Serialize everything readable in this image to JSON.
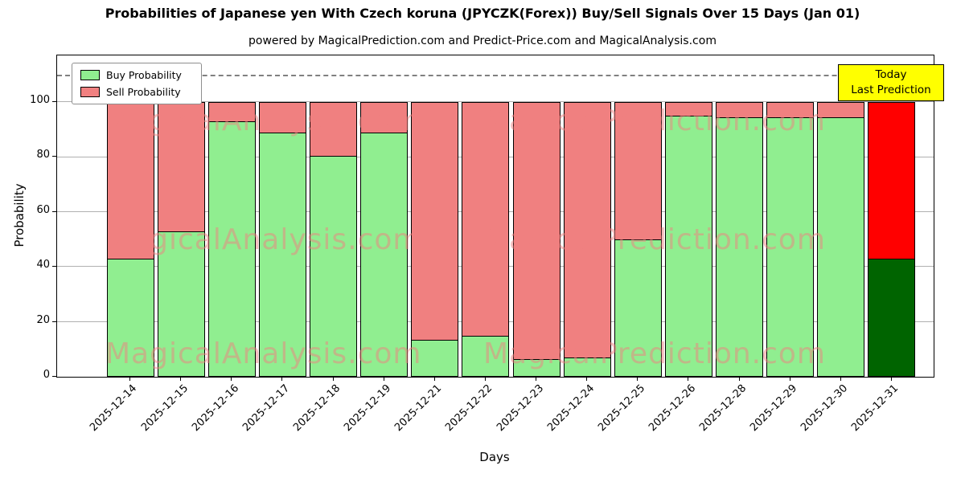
{
  "chart_data": {
    "type": "bar",
    "stacked": true,
    "title": "Probabilities of Japanese yen With Czech koruna (JPYCZK(Forex)) Buy/Sell Signals Over 15 Days (Jan 01)",
    "subtitle": "powered by MagicalPrediction.com and Predict-Price.com and MagicalAnalysis.com",
    "xlabel": "Days",
    "ylabel": "Probability",
    "ylim": [
      0,
      117
    ],
    "yticks": [
      0,
      20,
      40,
      60,
      80,
      100
    ],
    "grid": true,
    "dashed_line_y": 110,
    "legend_position": "upper left",
    "categories": [
      "2025-12-14",
      "2025-12-15",
      "2025-12-16",
      "2025-12-17",
      "2025-12-18",
      "2025-12-19",
      "2025-12-21",
      "2025-12-22",
      "2025-12-23",
      "2025-12-24",
      "2025-12-25",
      "2025-12-26",
      "2025-12-28",
      "2025-12-29",
      "2025-12-30",
      "2025-12-31"
    ],
    "series": [
      {
        "name": "Buy Probability",
        "color": "#90ee90",
        "values": [
          43,
          53,
          93,
          89,
          80.5,
          89,
          13.5,
          15,
          6.5,
          7,
          50,
          95,
          94.5,
          94.5,
          94.5,
          43
        ]
      },
      {
        "name": "Sell Probability",
        "color": "#f08080",
        "values": [
          57,
          47,
          7,
          11,
          19.5,
          11,
          86.5,
          85,
          93.5,
          93,
          50,
          5,
          5.5,
          5.5,
          5.5,
          57
        ]
      }
    ],
    "today_index": 15,
    "today_colors": {
      "buy": "#006400",
      "sell": "#ff0000"
    }
  },
  "annotation": {
    "line1": "Today",
    "line2": "Last Prediction",
    "bg_color": "#ffff00"
  },
  "watermarks": {
    "left": "MagicalAnalysis.com",
    "right": "MagicalPrediction.com"
  },
  "colors": {
    "axis": "#000000",
    "grid": "#b0b0b0",
    "dashed_line": "#808080",
    "watermark": "rgba(240,128,128,0.5)"
  }
}
